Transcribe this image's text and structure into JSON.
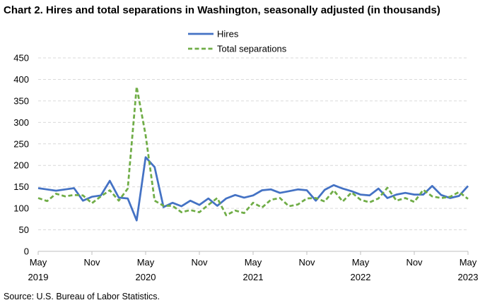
{
  "title": "Chart 2. Hires and total separations in Washington, seasonally adjusted (in thousands)",
  "source": "Source: U.S. Bureau of Labor Statistics.",
  "chart_data": {
    "type": "line",
    "x": [
      "2019-05",
      "2019-06",
      "2019-07",
      "2019-08",
      "2019-09",
      "2019-10",
      "2019-11",
      "2019-12",
      "2020-01",
      "2020-02",
      "2020-03",
      "2020-04",
      "2020-05",
      "2020-06",
      "2020-07",
      "2020-08",
      "2020-09",
      "2020-10",
      "2020-11",
      "2020-12",
      "2021-01",
      "2021-02",
      "2021-03",
      "2021-04",
      "2021-05",
      "2021-06",
      "2021-07",
      "2021-08",
      "2021-09",
      "2021-10",
      "2021-11",
      "2021-12",
      "2022-01",
      "2022-02",
      "2022-03",
      "2022-04",
      "2022-05",
      "2022-06",
      "2022-07",
      "2022-08",
      "2022-09",
      "2022-10",
      "2022-11",
      "2022-12",
      "2023-01",
      "2023-02",
      "2023-03",
      "2023-04",
      "2023-05"
    ],
    "x_tick_labels": [
      {
        "month": "May",
        "year": "2019"
      },
      {
        "month": "Nov",
        "year": ""
      },
      {
        "month": "May",
        "year": "2020"
      },
      {
        "month": "Nov",
        "year": ""
      },
      {
        "month": "May",
        "year": "2021"
      },
      {
        "month": "Nov",
        "year": ""
      },
      {
        "month": "May",
        "year": "2022"
      },
      {
        "month": "Nov",
        "year": ""
      },
      {
        "month": "May",
        "year": "2023"
      }
    ],
    "y_ticks": [
      "0",
      "50",
      "100",
      "150",
      "200",
      "250",
      "300",
      "350",
      "400",
      "450"
    ],
    "ylim": [
      0,
      450
    ],
    "grid": true,
    "legend_position": "top-center",
    "series": [
      {
        "name": "Hires",
        "color": "#4472c4",
        "style": "solid",
        "values": [
          147,
          144,
          141,
          144,
          147,
          118,
          127,
          130,
          164,
          125,
          123,
          72,
          219,
          196,
          103,
          113,
          105,
          118,
          108,
          123,
          106,
          123,
          131,
          125,
          130,
          142,
          144,
          136,
          140,
          144,
          142,
          118,
          143,
          154,
          146,
          140,
          132,
          130,
          146,
          124,
          132,
          136,
          132,
          132,
          152,
          131,
          124,
          129,
          152
        ]
      },
      {
        "name": "Total separations",
        "color": "#70ad47",
        "style": "dashed",
        "values": [
          124,
          117,
          134,
          128,
          131,
          130,
          112,
          128,
          142,
          118,
          146,
          383,
          270,
          118,
          106,
          106,
          91,
          96,
          91,
          108,
          124,
          84,
          95,
          89,
          113,
          102,
          120,
          124,
          105,
          109,
          123,
          124,
          116,
          142,
          116,
          137,
          120,
          114,
          123,
          148,
          118,
          124,
          115,
          143,
          128,
          124,
          127,
          138,
          122
        ]
      }
    ]
  }
}
